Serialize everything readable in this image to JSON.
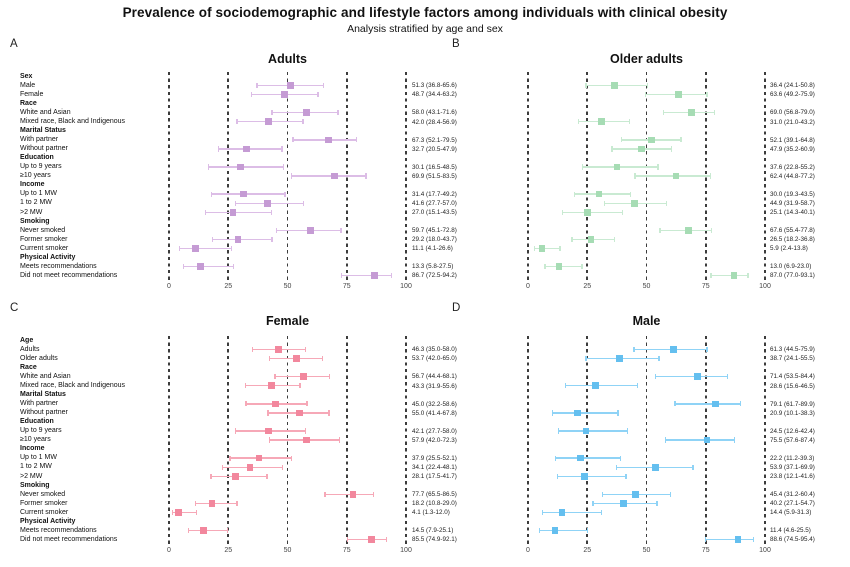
{
  "header": {
    "title": "Prevalence of sociodemographic and lifestyle factors among individuals with clinical obesity",
    "subtitle": "Analysis stratified by age and sex"
  },
  "axis": {
    "min": 0,
    "max": 100,
    "ticks": [
      0,
      25,
      50,
      75,
      100
    ]
  },
  "chart_data": [
    {
      "type": "scatter",
      "subtype": "forest-plot",
      "panel": "A",
      "title": "Adults",
      "marker_color": "#c59bd4",
      "bar_color": "#dcbde6",
      "xlim": [
        0,
        100
      ],
      "xticks": [
        0,
        25,
        50,
        75,
        100
      ],
      "rows": [
        {
          "label": "Sex",
          "header": true
        },
        {
          "label": "Male",
          "value": 51.3,
          "ci_low": 36.8,
          "ci_high": 65.6,
          "text": "51.3 (36.8-65.6)"
        },
        {
          "label": "Female",
          "value": 48.7,
          "ci_low": 34.4,
          "ci_high": 63.2,
          "text": "48.7 (34.4-63.2)"
        },
        {
          "label": "Race",
          "header": true
        },
        {
          "label": "White and Asian",
          "value": 58.0,
          "ci_low": 43.1,
          "ci_high": 71.6,
          "text": "58.0 (43.1-71.6)"
        },
        {
          "label": "Mixed race, Black and Indigenous",
          "value": 42.0,
          "ci_low": 28.4,
          "ci_high": 56.9,
          "text": "42.0 (28.4-56.9)"
        },
        {
          "label": "Marital Status",
          "header": true
        },
        {
          "label": "With partner",
          "value": 67.3,
          "ci_low": 52.1,
          "ci_high": 79.5,
          "text": "67.3 (52.1-79.5)"
        },
        {
          "label": "Without partner",
          "value": 32.7,
          "ci_low": 20.5,
          "ci_high": 47.9,
          "text": "32.7 (20.5-47.9)"
        },
        {
          "label": "Education",
          "header": true
        },
        {
          "label": "Up to 9 years",
          "value": 30.1,
          "ci_low": 16.5,
          "ci_high": 48.5,
          "text": "30.1 (16.5-48.5)"
        },
        {
          "label": "≥10 years",
          "value": 69.9,
          "ci_low": 51.5,
          "ci_high": 83.5,
          "text": "69.9 (51.5-83.5)"
        },
        {
          "label": "Income",
          "header": true
        },
        {
          "label": "Up to 1 MW",
          "value": 31.4,
          "ci_low": 17.7,
          "ci_high": 49.2,
          "text": "31.4 (17.7-49.2)"
        },
        {
          "label": "1 to 2 MW",
          "value": 41.6,
          "ci_low": 27.7,
          "ci_high": 57.0,
          "text": "41.6 (27.7-57.0)"
        },
        {
          "label": ">2 MW",
          "value": 27.0,
          "ci_low": 15.1,
          "ci_high": 43.5,
          "text": "27.0 (15.1-43.5)"
        },
        {
          "label": "Smoking",
          "header": true
        },
        {
          "label": "Never smoked",
          "value": 59.7,
          "ci_low": 45.1,
          "ci_high": 72.8,
          "text": "59.7 (45.1-72.8)"
        },
        {
          "label": "Former smoker",
          "value": 29.2,
          "ci_low": 18.0,
          "ci_high": 43.7,
          "text": "29.2 (18.0-43.7)"
        },
        {
          "label": "Current smoker",
          "value": 11.1,
          "ci_low": 4.1,
          "ci_high": 26.6,
          "text": "11.1 (4.1-26.6)"
        },
        {
          "label": "Physical Activity",
          "header": true
        },
        {
          "label": "Meets recommendations",
          "value": 13.3,
          "ci_low": 5.8,
          "ci_high": 27.5,
          "text": "13.3 (5.8-27.5)"
        },
        {
          "label": "Did not meet recommendations",
          "value": 86.7,
          "ci_low": 72.5,
          "ci_high": 94.2,
          "text": "86.7 (72.5-94.2)"
        }
      ]
    },
    {
      "type": "scatter",
      "subtype": "forest-plot",
      "panel": "B",
      "title": "Older adults",
      "marker_color": "#a6dcb4",
      "bar_color": "#c9ead2",
      "xlim": [
        0,
        100
      ],
      "xticks": [
        0,
        25,
        50,
        75,
        100
      ],
      "rows": [
        {
          "label": "Sex",
          "header": true
        },
        {
          "label": "Male",
          "value": 36.4,
          "ci_low": 24.1,
          "ci_high": 50.8,
          "text": "36.4 (24.1-50.8)"
        },
        {
          "label": "Female",
          "value": 63.6,
          "ci_low": 49.2,
          "ci_high": 75.9,
          "text": "63.6 (49.2-75.9)"
        },
        {
          "label": "Race",
          "header": true
        },
        {
          "label": "White and Asian",
          "value": 69.0,
          "ci_low": 56.8,
          "ci_high": 79.0,
          "text": "69.0 (56.8-79.0)"
        },
        {
          "label": "Mixed race, Black and Indigenous",
          "value": 31.0,
          "ci_low": 21.0,
          "ci_high": 43.2,
          "text": "31.0 (21.0-43.2)"
        },
        {
          "label": "Marital Status",
          "header": true
        },
        {
          "label": "With partner",
          "value": 52.1,
          "ci_low": 39.1,
          "ci_high": 64.8,
          "text": "52.1 (39.1-64.8)"
        },
        {
          "label": "Without partner",
          "value": 47.9,
          "ci_low": 35.2,
          "ci_high": 60.9,
          "text": "47.9 (35.2-60.9)"
        },
        {
          "label": "Education",
          "header": true
        },
        {
          "label": "Up to 9 years",
          "value": 37.6,
          "ci_low": 22.8,
          "ci_high": 55.2,
          "text": "37.6 (22.8-55.2)"
        },
        {
          "label": "≥10 years",
          "value": 62.4,
          "ci_low": 44.8,
          "ci_high": 77.2,
          "text": "62.4 (44.8-77.2)"
        },
        {
          "label": "Income",
          "header": true
        },
        {
          "label": "Up to 1 MW",
          "value": 30.0,
          "ci_low": 19.3,
          "ci_high": 43.5,
          "text": "30.0 (19.3-43.5)"
        },
        {
          "label": "1 to 2 MW",
          "value": 44.9,
          "ci_low": 31.9,
          "ci_high": 58.7,
          "text": "44.9 (31.9-58.7)"
        },
        {
          "label": ">2 MW",
          "value": 25.1,
          "ci_low": 14.3,
          "ci_high": 40.1,
          "text": "25.1 (14.3-40.1)"
        },
        {
          "label": "Smoking",
          "header": true
        },
        {
          "label": "Never smoked",
          "value": 67.6,
          "ci_low": 55.4,
          "ci_high": 77.8,
          "text": "67.6 (55.4-77.8)"
        },
        {
          "label": "Former smoker",
          "value": 26.5,
          "ci_low": 18.2,
          "ci_high": 36.8,
          "text": "26.5 (18.2-36.8)"
        },
        {
          "label": "Current smoker",
          "value": 5.9,
          "ci_low": 2.4,
          "ci_high": 13.8,
          "text": "5.9 (2.4-13.8)"
        },
        {
          "label": "Physical Activity",
          "header": true
        },
        {
          "label": "Meets recommendations",
          "value": 13.0,
          "ci_low": 6.9,
          "ci_high": 23.0,
          "text": "13.0 (6.9-23.0)"
        },
        {
          "label": "Did not meet recommendations",
          "value": 87.0,
          "ci_low": 77.0,
          "ci_high": 93.1,
          "text": "87.0 (77.0-93.1)"
        }
      ]
    },
    {
      "type": "scatter",
      "subtype": "forest-plot",
      "panel": "C",
      "title": "Female",
      "marker_color": "#f2879d",
      "bar_color": "#f6a8b7",
      "xlim": [
        0,
        100
      ],
      "xticks": [
        0,
        25,
        50,
        75,
        100
      ],
      "rows": [
        {
          "label": "Age",
          "header": true
        },
        {
          "label": "Adults",
          "value": 46.3,
          "ci_low": 35.0,
          "ci_high": 58.0,
          "text": "46.3 (35.0-58.0)"
        },
        {
          "label": "Older adults",
          "value": 53.7,
          "ci_low": 42.0,
          "ci_high": 65.0,
          "text": "53.7 (42.0-65.0)"
        },
        {
          "label": "Race",
          "header": true
        },
        {
          "label": "White and Asian",
          "value": 56.7,
          "ci_low": 44.4,
          "ci_high": 68.1,
          "text": "56.7 (44.4-68.1)"
        },
        {
          "label": "Mixed race, Black and Indigenous",
          "value": 43.3,
          "ci_low": 31.9,
          "ci_high": 55.6,
          "text": "43.3 (31.9-55.6)"
        },
        {
          "label": "Marital Status",
          "header": true
        },
        {
          "label": "With partner",
          "value": 45.0,
          "ci_low": 32.2,
          "ci_high": 58.6,
          "text": "45.0 (32.2-58.6)"
        },
        {
          "label": "Without partner",
          "value": 55.0,
          "ci_low": 41.4,
          "ci_high": 67.8,
          "text": "55.0 (41.4-67.8)"
        },
        {
          "label": "Education",
          "header": true
        },
        {
          "label": "Up to 9 years",
          "value": 42.1,
          "ci_low": 27.7,
          "ci_high": 58.0,
          "text": "42.1 (27.7-58.0)"
        },
        {
          "label": "≥10 years",
          "value": 57.9,
          "ci_low": 42.0,
          "ci_high": 72.3,
          "text": "57.9 (42.0-72.3)"
        },
        {
          "label": "Income",
          "header": true
        },
        {
          "label": "Up to 1 MW",
          "value": 37.9,
          "ci_low": 25.5,
          "ci_high": 52.1,
          "text": "37.9 (25.5-52.1)"
        },
        {
          "label": "1 to 2 MW",
          "value": 34.1,
          "ci_low": 22.4,
          "ci_high": 48.1,
          "text": "34.1 (22.4-48.1)"
        },
        {
          "label": ">2 MW",
          "value": 28.1,
          "ci_low": 17.5,
          "ci_high": 41.7,
          "text": "28.1 (17.5-41.7)"
        },
        {
          "label": "Smoking",
          "header": true
        },
        {
          "label": "Never smoked",
          "value": 77.7,
          "ci_low": 65.5,
          "ci_high": 86.5,
          "text": "77.7 (65.5-86.5)"
        },
        {
          "label": "Former smoker",
          "value": 18.2,
          "ci_low": 10.8,
          "ci_high": 29.0,
          "text": "18.2 (10.8-29.0)"
        },
        {
          "label": "Current smoker",
          "value": 4.1,
          "ci_low": 1.3,
          "ci_high": 12.0,
          "text": "4.1 (1.3-12.0)"
        },
        {
          "label": "Physical Activity",
          "header": true
        },
        {
          "label": "Meets recommendations",
          "value": 14.5,
          "ci_low": 7.9,
          "ci_high": 25.1,
          "text": "14.5 (7.9-25.1)"
        },
        {
          "label": "Did not meet recommendations",
          "value": 85.5,
          "ci_low": 74.9,
          "ci_high": 92.1,
          "text": "85.5 (74.9-92.1)"
        }
      ]
    },
    {
      "type": "scatter",
      "subtype": "forest-plot",
      "panel": "D",
      "title": "Male",
      "marker_color": "#64bfef",
      "bar_color": "#8fd3f6",
      "xlim": [
        0,
        100
      ],
      "xticks": [
        0,
        25,
        50,
        75,
        100
      ],
      "rows": [
        {
          "label": "Age",
          "header": true
        },
        {
          "label": "Adults",
          "value": 61.3,
          "ci_low": 44.5,
          "ci_high": 75.9,
          "text": "61.3 (44.5-75.9)"
        },
        {
          "label": "Older adults",
          "value": 38.7,
          "ci_low": 24.1,
          "ci_high": 55.5,
          "text": "38.7 (24.1-55.5)"
        },
        {
          "label": "Race",
          "header": true
        },
        {
          "label": "White and Asian",
          "value": 71.4,
          "ci_low": 53.5,
          "ci_high": 84.4,
          "text": "71.4 (53.5-84.4)"
        },
        {
          "label": "Mixed race, Black and Indigenous",
          "value": 28.6,
          "ci_low": 15.6,
          "ci_high": 46.5,
          "text": "28.6 (15.6-46.5)"
        },
        {
          "label": "Marital Status",
          "header": true
        },
        {
          "label": "With partner",
          "value": 79.1,
          "ci_low": 61.7,
          "ci_high": 89.9,
          "text": "79.1 (61.7-89.9)"
        },
        {
          "label": "Without partner",
          "value": 20.9,
          "ci_low": 10.1,
          "ci_high": 38.3,
          "text": "20.9 (10.1-38.3)"
        },
        {
          "label": "Education",
          "header": true
        },
        {
          "label": "Up to 9 years",
          "value": 24.5,
          "ci_low": 12.6,
          "ci_high": 42.4,
          "text": "24.5 (12.6-42.4)"
        },
        {
          "label": "≥10 years",
          "value": 75.5,
          "ci_low": 57.6,
          "ci_high": 87.4,
          "text": "75.5 (57.6-87.4)"
        },
        {
          "label": "Income",
          "header": true
        },
        {
          "label": "Up to 1 MW",
          "value": 22.2,
          "ci_low": 11.2,
          "ci_high": 39.3,
          "text": "22.2 (11.2-39.3)"
        },
        {
          "label": "1 to 2 MW",
          "value": 53.9,
          "ci_low": 37.1,
          "ci_high": 69.9,
          "text": "53.9 (37.1-69.9)"
        },
        {
          "label": ">2 MW",
          "value": 23.8,
          "ci_low": 12.1,
          "ci_high": 41.6,
          "text": "23.8 (12.1-41.6)"
        },
        {
          "label": "Smoking",
          "header": true
        },
        {
          "label": "Never smoked",
          "value": 45.4,
          "ci_low": 31.2,
          "ci_high": 60.4,
          "text": "45.4 (31.2-60.4)"
        },
        {
          "label": "Former smoker",
          "value": 40.2,
          "ci_low": 27.1,
          "ci_high": 54.7,
          "text": "40.2 (27.1-54.7)"
        },
        {
          "label": "Current smoker",
          "value": 14.4,
          "ci_low": 5.9,
          "ci_high": 31.3,
          "text": "14.4 (5.9-31.3)"
        },
        {
          "label": "Physical Activity",
          "header": true
        },
        {
          "label": "Meets recommendations",
          "value": 11.4,
          "ci_low": 4.6,
          "ci_high": 25.5,
          "text": "11.4 (4.6-25.5)"
        },
        {
          "label": "Did not meet recommendations",
          "value": 88.6,
          "ci_low": 74.5,
          "ci_high": 95.4,
          "text": "88.6 (74.5-95.4)"
        }
      ]
    }
  ]
}
